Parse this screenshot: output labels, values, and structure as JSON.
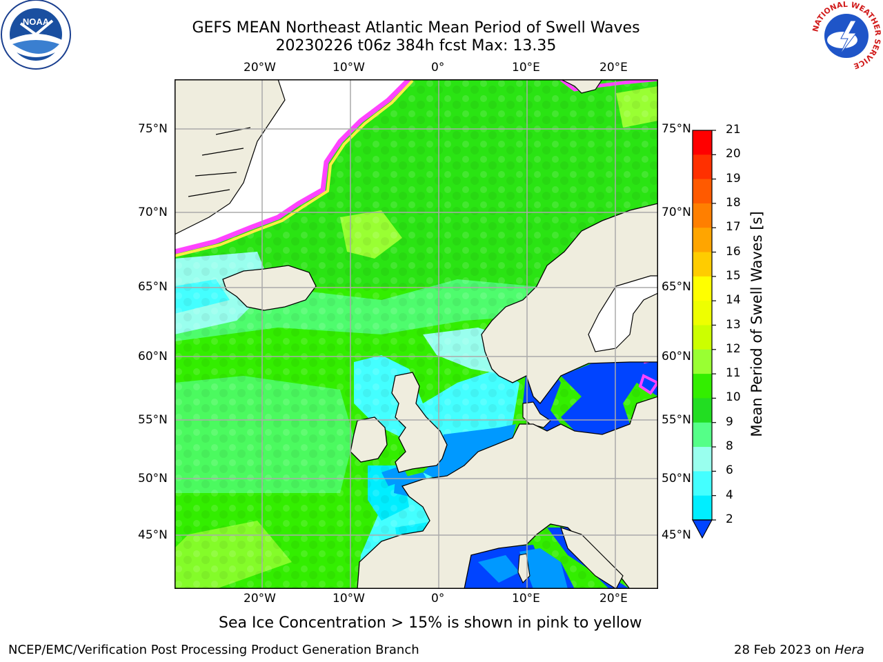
{
  "title": {
    "line1": "GEFS MEAN Northeast Atlantic Mean Period of Swell Waves",
    "line2": "20230226 t06z 384h fcst   Max: 13.35"
  },
  "map": {
    "lon_range": [
      -30,
      25
    ],
    "lat_range": [
      41,
      78
    ],
    "lon_labels_top": [
      "20°W",
      "10°W",
      "0°",
      "10°E",
      "20°E"
    ],
    "lon_labels_bottom": [
      "20°W",
      "10°W",
      "0°",
      "10°E",
      "20°E"
    ],
    "lat_labels_left": [
      "75°N",
      "70°N",
      "65°N",
      "60°N",
      "55°N",
      "50°N",
      "45°N"
    ],
    "lat_labels_right": [
      "75°N",
      "70°N",
      "65°N",
      "60°N",
      "55°N",
      "50°N",
      "45°N"
    ],
    "land_color": "#efedde",
    "ice_color": "#ffffff",
    "gridlines": true
  },
  "colorbar": {
    "label": "Mean Period of Swell Waves [s]",
    "ticks": [
      "21",
      "20",
      "19",
      "18",
      "17",
      "16",
      "15",
      "14",
      "13",
      "12",
      "11",
      "10",
      "9",
      "8",
      "6",
      "4",
      "2"
    ],
    "colors": [
      "#ff0000",
      "#ff3000",
      "#ff5a00",
      "#ff7f00",
      "#ffa500",
      "#ffcc00",
      "#ffff00",
      "#eeff00",
      "#ccff00",
      "#99ff33",
      "#33ee00",
      "#22dd22",
      "#55ff88",
      "#99ffee",
      "#44ffff",
      "#00eeff",
      "#0099ff",
      "#0044ff"
    ],
    "extend": "min"
  },
  "caption": "Sea Ice Concentration > 15% is shown in pink to yellow",
  "footer": {
    "left": "NCEP/EMC/Verification Post Processing Product Generation Branch",
    "right_prefix": "28 Feb 2023 on ",
    "right_machine": "Hera"
  },
  "logos": {
    "left": "noaa-logo",
    "right": "nws-logo",
    "left_text": "NOAA",
    "nws_ring_text": "NATIONAL WEATHER SERVICE"
  }
}
